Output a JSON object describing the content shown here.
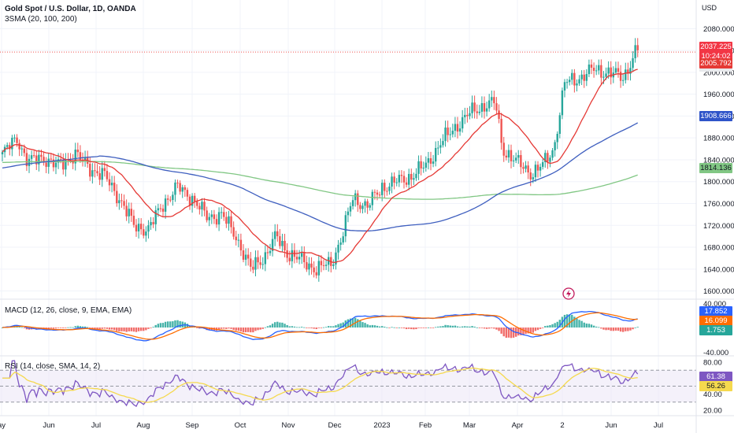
{
  "chart_data": {
    "type": "candlestick",
    "title": "Gold Spot / U.S. Dollar, 1D, OANDA",
    "indicator_label": "3SMA (20, 100, 200)",
    "currency": "USD",
    "x_ticks": [
      "ay",
      "Jun",
      "Jul",
      "Aug",
      "Sep",
      "Oct",
      "Nov",
      "Dec",
      "2023",
      "Feb",
      "Mar",
      "Apr",
      "2",
      "Jun",
      "Jul"
    ],
    "y_ticks": [
      1600,
      1640,
      1680,
      1720,
      1760,
      1800,
      1840,
      1880,
      1920,
      1960,
      2000,
      2040,
      2080
    ],
    "y_range": [
      1585,
      2092
    ],
    "price_samples": [
      {
        "date": "2022-05",
        "close": 1850
      },
      {
        "date": "2022-06",
        "close": 1850
      },
      {
        "date": "2022-07",
        "close": 1720
      },
      {
        "date": "2022-08",
        "close": 1790
      },
      {
        "date": "2022-09",
        "close": 1660
      },
      {
        "date": "2022-10",
        "close": 1660
      },
      {
        "date": "2022-11",
        "close": 1750
      },
      {
        "date": "2022-12",
        "close": 1810
      },
      {
        "date": "2023-01",
        "close": 1925
      },
      {
        "date": "2023-02",
        "close": 1830
      },
      {
        "date": "2023-03",
        "close": 1975
      },
      {
        "date": "2023-04",
        "close": 2000
      },
      {
        "date": "2023-05",
        "close": 2037
      }
    ],
    "price_levels": {
      "last": "2037.225",
      "countdown": "10:24:02",
      "sma20": "2005.792",
      "sma100": "1908.666",
      "sma200": "1814.136",
      "hidden_label": "2000.000"
    },
    "macd": {
      "label": "MACD (12, 26, close, 9, EMA, EMA)",
      "y_ticks": [
        "40.000",
        "-40.000"
      ],
      "macd": "17.852",
      "signal": "16.099",
      "histogram": "1.753"
    },
    "rsi": {
      "label": "RSI (14, close, SMA, 14, 2)",
      "y_ticks": [
        "80.00",
        "40.00",
        "20.00"
      ],
      "bands": [
        70,
        50,
        30
      ],
      "rsi": "61.38",
      "rsi_ma": "56.26"
    },
    "colors": {
      "up": "#26a69a",
      "down": "#ef5350",
      "sma20": "#e53935",
      "sma100": "#3f5fbf",
      "sma200": "#81c784",
      "macd": "#2962ff",
      "signal": "#ff6d00",
      "rsi": "#7e57c2",
      "rsi_ma": "#f5d94e",
      "rsi_band": "#ede7f6",
      "grid": "#f0f3fa"
    }
  }
}
